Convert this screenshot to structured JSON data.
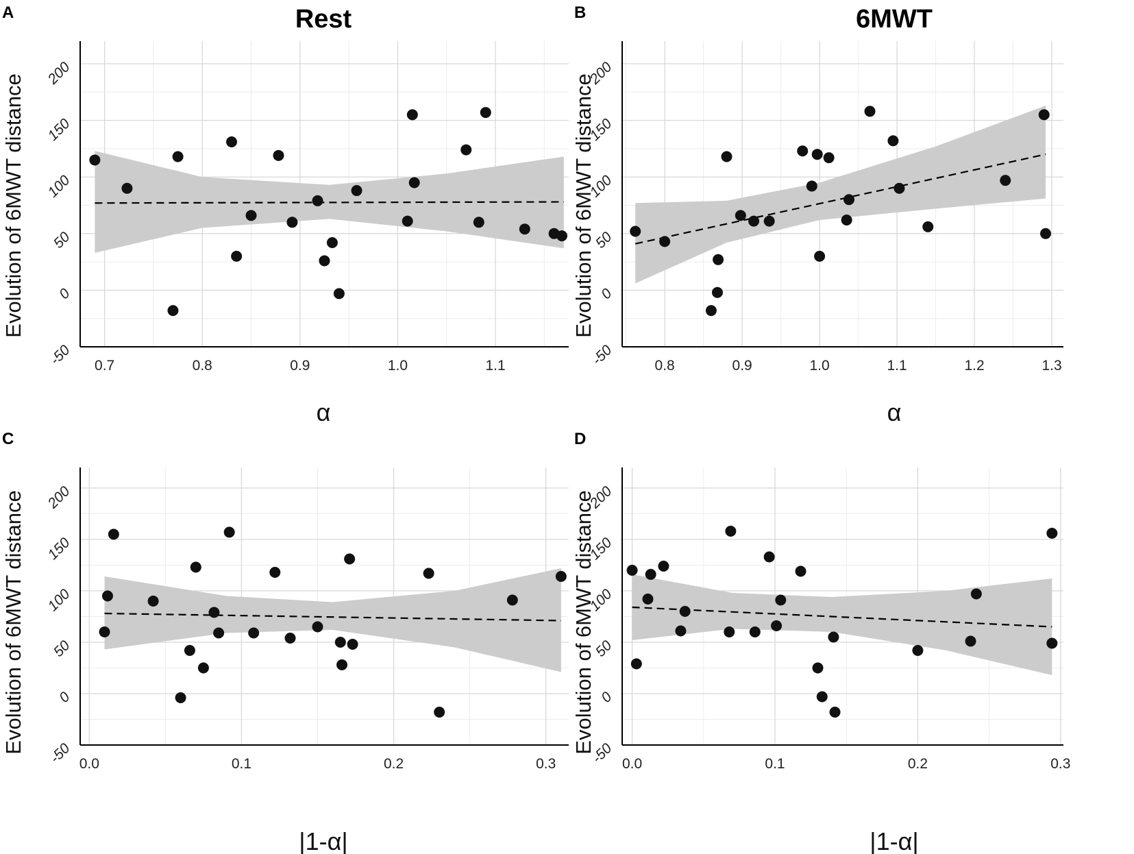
{
  "chart_data": [
    {
      "panel": "A",
      "type": "scatter",
      "title": "Rest",
      "xlabel": "α",
      "ylabel": "Evolution of 6MWT distance",
      "xlim": [
        0.675,
        1.175
      ],
      "ylim": [
        -50,
        220
      ],
      "xticks": [
        0.7,
        0.8,
        0.9,
        1.0,
        1.1
      ],
      "xtick_labels": [
        "0.7",
        "0.8",
        "0.9",
        "1.0",
        "1.1"
      ],
      "yticks": [
        -50,
        0,
        50,
        100,
        150,
        200
      ],
      "ytick_labels": [
        "-50",
        "0",
        "50",
        "100",
        "150",
        "200"
      ],
      "points": [
        [
          0.69,
          115
        ],
        [
          0.723,
          90
        ],
        [
          0.77,
          -18
        ],
        [
          0.775,
          118
        ],
        [
          0.83,
          131
        ],
        [
          0.835,
          30
        ],
        [
          0.85,
          66
        ],
        [
          0.878,
          119
        ],
        [
          0.892,
          60
        ],
        [
          0.918,
          79
        ],
        [
          0.925,
          26
        ],
        [
          0.933,
          42
        ],
        [
          0.94,
          -3
        ],
        [
          0.958,
          88
        ],
        [
          1.01,
          61
        ],
        [
          1.015,
          155
        ],
        [
          1.017,
          95
        ],
        [
          1.07,
          124
        ],
        [
          1.083,
          60
        ],
        [
          1.09,
          157
        ],
        [
          1.13,
          54
        ],
        [
          1.16,
          50
        ],
        [
          1.168,
          48
        ]
      ],
      "fit": {
        "x": [
          0.69,
          1.17
        ],
        "y": [
          77,
          78
        ]
      },
      "ci": {
        "x": [
          0.69,
          0.8,
          0.93,
          1.05,
          1.17
        ],
        "lower": [
          33,
          55,
          63,
          52,
          37
        ],
        "upper": [
          123,
          100,
          93,
          103,
          118
        ]
      }
    },
    {
      "panel": "B",
      "type": "scatter",
      "title": "6MWT",
      "xlabel": "α",
      "ylabel": "Evolution of 6MWT distance",
      "xlim": [
        0.745,
        1.315
      ],
      "ylim": [
        -50,
        220
      ],
      "xticks": [
        0.8,
        0.9,
        1.0,
        1.1,
        1.2,
        1.3
      ],
      "xtick_labels": [
        "0.8",
        "0.9",
        "1.0",
        "1.1",
        "1.2",
        "1.3"
      ],
      "yticks": [
        -50,
        0,
        50,
        100,
        150,
        200
      ],
      "ytick_labels": [
        "-50",
        "0",
        "50",
        "100",
        "150",
        "200"
      ],
      "points": [
        [
          0.762,
          52
        ],
        [
          0.8,
          43
        ],
        [
          0.86,
          -18
        ],
        [
          0.868,
          -2
        ],
        [
          0.869,
          27
        ],
        [
          0.88,
          118
        ],
        [
          0.898,
          66
        ],
        [
          0.915,
          61
        ],
        [
          0.935,
          61
        ],
        [
          0.978,
          123
        ],
        [
          0.99,
          92
        ],
        [
          0.997,
          120
        ],
        [
          1.0,
          30
        ],
        [
          1.012,
          117
        ],
        [
          1.035,
          62
        ],
        [
          1.038,
          80
        ],
        [
          1.065,
          158
        ],
        [
          1.095,
          132
        ],
        [
          1.103,
          90
        ],
        [
          1.14,
          56
        ],
        [
          1.24,
          97
        ],
        [
          1.29,
          155
        ],
        [
          1.292,
          50
        ]
      ],
      "fit": {
        "x": [
          0.762,
          1.292
        ],
        "y": [
          41,
          120
        ]
      },
      "ci": {
        "x": [
          0.762,
          0.88,
          1.0,
          1.15,
          1.292
        ],
        "lower": [
          6,
          42,
          62,
          72,
          81
        ],
        "upper": [
          77,
          79,
          95,
          127,
          163
        ]
      }
    },
    {
      "panel": "C",
      "type": "scatter",
      "title": "",
      "xlabel": "|1-α|",
      "ylabel": "Evolution of 6MWT distance",
      "xlim": [
        -0.006,
        0.315
      ],
      "ylim": [
        -50,
        220
      ],
      "xticks": [
        0.0,
        0.1,
        0.2,
        0.3
      ],
      "xtick_labels": [
        "0.0",
        "0.1",
        "0.2",
        "0.3"
      ],
      "yticks": [
        -50,
        0,
        50,
        100,
        150,
        200
      ],
      "ytick_labels": [
        "-50",
        "0",
        "50",
        "100",
        "150",
        "200"
      ],
      "points": [
        [
          0.01,
          60
        ],
        [
          0.012,
          95
        ],
        [
          0.016,
          155
        ],
        [
          0.042,
          90
        ],
        [
          0.06,
          -4
        ],
        [
          0.066,
          42
        ],
        [
          0.07,
          123
        ],
        [
          0.075,
          25
        ],
        [
          0.082,
          79
        ],
        [
          0.085,
          59
        ],
        [
          0.092,
          157
        ],
        [
          0.108,
          59
        ],
        [
          0.122,
          118
        ],
        [
          0.132,
          54
        ],
        [
          0.15,
          65
        ],
        [
          0.165,
          50
        ],
        [
          0.166,
          28
        ],
        [
          0.171,
          131
        ],
        [
          0.173,
          48
        ],
        [
          0.223,
          117
        ],
        [
          0.23,
          -18
        ],
        [
          0.278,
          91
        ],
        [
          0.31,
          114
        ]
      ],
      "fit": {
        "x": [
          0.01,
          0.31
        ],
        "y": [
          78,
          71
        ]
      },
      "ci": {
        "x": [
          0.01,
          0.09,
          0.16,
          0.24,
          0.31
        ],
        "lower": [
          43,
          59,
          62,
          45,
          21
        ],
        "upper": [
          114,
          95,
          89,
          100,
          122
        ]
      }
    },
    {
      "panel": "D",
      "type": "scatter",
      "title": "",
      "xlabel": "|1-α|",
      "ylabel": "Evolution of 6MWT distance",
      "xlim": [
        -0.007,
        0.302
      ],
      "ylim": [
        -50,
        220
      ],
      "xticks": [
        0.0,
        0.1,
        0.2,
        0.3
      ],
      "xtick_labels": [
        "0.0",
        "0.1",
        "0.2",
        "0.3"
      ],
      "yticks": [
        -50,
        0,
        50,
        100,
        150,
        200
      ],
      "ytick_labels": [
        "-50",
        "0",
        "50",
        "100",
        "150",
        "200"
      ],
      "points": [
        [
          0.0,
          120
        ],
        [
          0.003,
          29
        ],
        [
          0.011,
          92
        ],
        [
          0.013,
          116
        ],
        [
          0.022,
          124
        ],
        [
          0.034,
          61
        ],
        [
          0.037,
          80
        ],
        [
          0.068,
          60
        ],
        [
          0.069,
          158
        ],
        [
          0.086,
          60
        ],
        [
          0.096,
          133
        ],
        [
          0.101,
          66
        ],
        [
          0.104,
          91
        ],
        [
          0.118,
          119
        ],
        [
          0.13,
          25
        ],
        [
          0.133,
          -3
        ],
        [
          0.141,
          55
        ],
        [
          0.142,
          -18
        ],
        [
          0.2,
          42
        ],
        [
          0.237,
          51
        ],
        [
          0.241,
          97
        ],
        [
          0.294,
          49
        ],
        [
          0.294,
          156
        ]
      ],
      "fit": {
        "x": [
          0.0,
          0.294
        ],
        "y": [
          84,
          65
        ]
      },
      "ci": {
        "x": [
          0.0,
          0.07,
          0.14,
          0.22,
          0.294
        ],
        "lower": [
          52,
          63,
          60,
          42,
          18
        ],
        "upper": [
          116,
          98,
          94,
          100,
          112
        ]
      }
    }
  ]
}
